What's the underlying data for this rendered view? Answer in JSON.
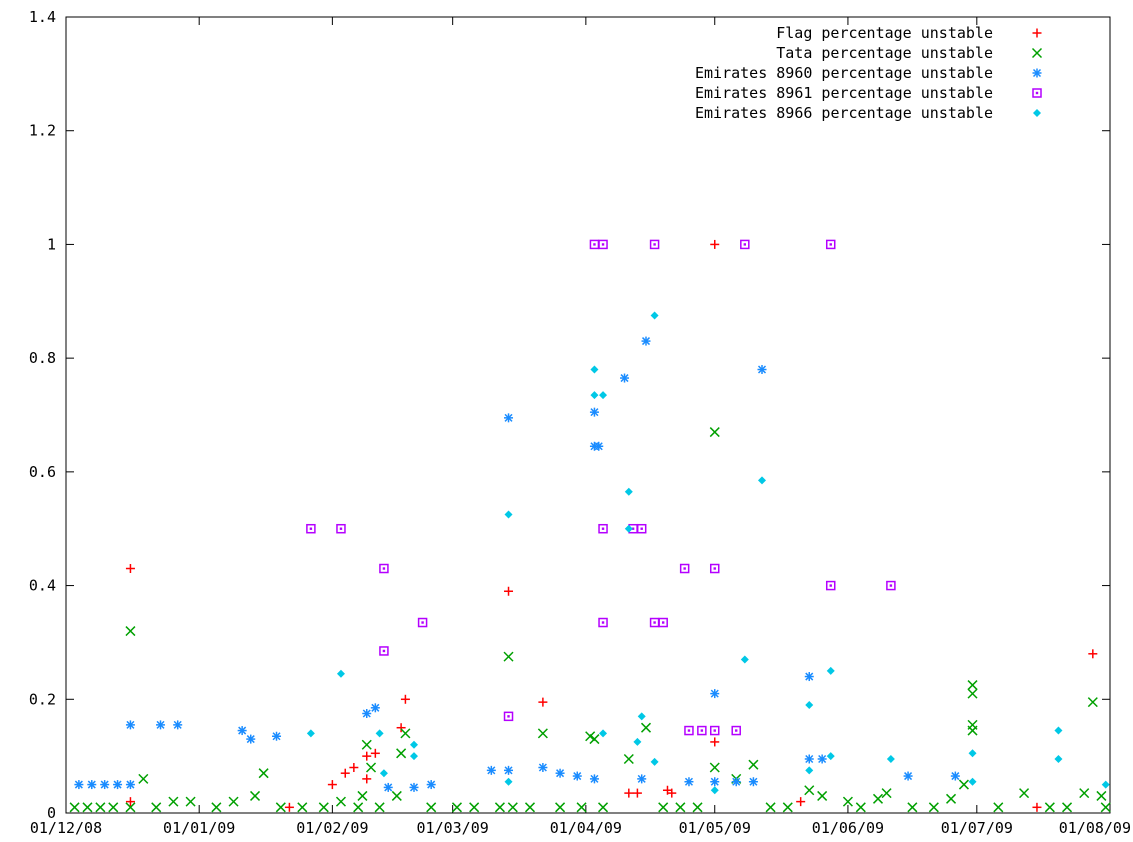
{
  "chart_data": {
    "type": "scatter",
    "title": "",
    "xlabel": "",
    "ylabel": "",
    "xlim": [
      "2008-12-01",
      "2009-08-01"
    ],
    "ylim": [
      0,
      1.4
    ],
    "x_ticks": [
      "01/12/08",
      "01/01/09",
      "01/02/09",
      "01/03/09",
      "01/04/09",
      "01/05/09",
      "01/06/09",
      "01/07/09",
      "01/08/09"
    ],
    "y_ticks": [
      "0",
      "0.2",
      "0.4",
      "0.6",
      "0.8",
      "1",
      "1.2",
      "1.4"
    ],
    "grid": false,
    "legend_position": "top-right",
    "series": [
      {
        "name": "Flag percentage unstable",
        "color": "#ff0000",
        "marker": "plus",
        "points": [
          [
            "2008-12-16",
            0.43
          ],
          [
            "2008-12-16",
            0.02
          ],
          [
            "2009-01-22",
            0.01
          ],
          [
            "2009-02-01",
            0.05
          ],
          [
            "2009-02-04",
            0.07
          ],
          [
            "2009-02-06",
            0.08
          ],
          [
            "2009-02-09",
            0.1
          ],
          [
            "2009-02-11",
            0.105
          ],
          [
            "2009-02-09",
            0.06
          ],
          [
            "2009-02-17",
            0.15
          ],
          [
            "2009-02-18",
            0.2
          ],
          [
            "2009-03-14",
            0.39
          ],
          [
            "2009-03-22",
            0.195
          ],
          [
            "2009-04-11",
            0.035
          ],
          [
            "2009-04-13",
            0.035
          ],
          [
            "2009-04-20",
            0.04
          ],
          [
            "2009-04-21",
            0.035
          ],
          [
            "2009-05-01",
            1.0
          ],
          [
            "2009-05-01",
            0.125
          ],
          [
            "2009-05-21",
            0.02
          ],
          [
            "2009-07-15",
            0.01
          ],
          [
            "2009-07-28",
            0.28
          ]
        ]
      },
      {
        "name": "Tata percentage unstable",
        "color": "#00a000",
        "marker": "cross",
        "points": [
          [
            "2008-12-03",
            0.01
          ],
          [
            "2008-12-06",
            0.01
          ],
          [
            "2008-12-09",
            0.01
          ],
          [
            "2008-12-12",
            0.01
          ],
          [
            "2008-12-16",
            0.32
          ],
          [
            "2008-12-16",
            0.01
          ],
          [
            "2008-12-19",
            0.06
          ],
          [
            "2008-12-22",
            0.01
          ],
          [
            "2008-12-26",
            0.02
          ],
          [
            "2008-12-30",
            0.02
          ],
          [
            "2009-01-05",
            0.01
          ],
          [
            "2009-01-09",
            0.02
          ],
          [
            "2009-01-14",
            0.03
          ],
          [
            "2009-01-16",
            0.07
          ],
          [
            "2009-01-20",
            0.01
          ],
          [
            "2009-01-25",
            0.01
          ],
          [
            "2009-01-30",
            0.01
          ],
          [
            "2009-02-03",
            0.02
          ],
          [
            "2009-02-07",
            0.01
          ],
          [
            "2009-02-08",
            0.03
          ],
          [
            "2009-02-09",
            0.12
          ],
          [
            "2009-02-10",
            0.08
          ],
          [
            "2009-02-12",
            0.01
          ],
          [
            "2009-02-16",
            0.03
          ],
          [
            "2009-02-17",
            0.105
          ],
          [
            "2009-02-18",
            0.14
          ],
          [
            "2009-02-24",
            0.01
          ],
          [
            "2009-03-02",
            0.01
          ],
          [
            "2009-03-06",
            0.01
          ],
          [
            "2009-03-12",
            0.01
          ],
          [
            "2009-03-14",
            0.275
          ],
          [
            "2009-03-15",
            0.01
          ],
          [
            "2009-03-19",
            0.01
          ],
          [
            "2009-03-22",
            0.14
          ],
          [
            "2009-03-26",
            0.01
          ],
          [
            "2009-03-31",
            0.01
          ],
          [
            "2009-04-02",
            0.135
          ],
          [
            "2009-04-03",
            0.13
          ],
          [
            "2009-04-05",
            0.01
          ],
          [
            "2009-04-11",
            0.095
          ],
          [
            "2009-04-15",
            0.15
          ],
          [
            "2009-04-19",
            0.01
          ],
          [
            "2009-04-23",
            0.01
          ],
          [
            "2009-04-27",
            0.01
          ],
          [
            "2009-05-01",
            0.67
          ],
          [
            "2009-05-01",
            0.08
          ],
          [
            "2009-05-06",
            0.06
          ],
          [
            "2009-05-10",
            0.085
          ],
          [
            "2009-05-14",
            0.01
          ],
          [
            "2009-05-18",
            0.01
          ],
          [
            "2009-05-23",
            0.04
          ],
          [
            "2009-05-26",
            0.03
          ],
          [
            "2009-06-01",
            0.02
          ],
          [
            "2009-06-04",
            0.01
          ],
          [
            "2009-06-08",
            0.025
          ],
          [
            "2009-06-10",
            0.035
          ],
          [
            "2009-06-16",
            0.01
          ],
          [
            "2009-06-21",
            0.01
          ],
          [
            "2009-06-25",
            0.025
          ],
          [
            "2009-06-28",
            0.05
          ],
          [
            "2009-06-30",
            0.225
          ],
          [
            "2009-06-30",
            0.21
          ],
          [
            "2009-06-30",
            0.155
          ],
          [
            "2009-06-30",
            0.145
          ],
          [
            "2009-07-06",
            0.01
          ],
          [
            "2009-07-12",
            0.035
          ],
          [
            "2009-07-18",
            0.01
          ],
          [
            "2009-07-22",
            0.01
          ],
          [
            "2009-07-26",
            0.035
          ],
          [
            "2009-07-28",
            0.195
          ],
          [
            "2009-07-30",
            0.03
          ],
          [
            "2009-07-31",
            0.01
          ]
        ]
      },
      {
        "name": "Emirates 8960 percentage unstable",
        "color": "#1a8cff",
        "marker": "star",
        "points": [
          [
            "2008-12-04",
            0.05
          ],
          [
            "2008-12-07",
            0.05
          ],
          [
            "2008-12-10",
            0.05
          ],
          [
            "2008-12-13",
            0.05
          ],
          [
            "2008-12-16",
            0.155
          ],
          [
            "2008-12-16",
            0.05
          ],
          [
            "2008-12-23",
            0.155
          ],
          [
            "2008-12-27",
            0.155
          ],
          [
            "2009-01-11",
            0.145
          ],
          [
            "2009-01-13",
            0.13
          ],
          [
            "2009-01-19",
            0.135
          ],
          [
            "2009-02-09",
            0.175
          ],
          [
            "2009-02-11",
            0.185
          ],
          [
            "2009-02-14",
            0.045
          ],
          [
            "2009-02-20",
            0.045
          ],
          [
            "2009-02-24",
            0.05
          ],
          [
            "2009-03-14",
            0.695
          ],
          [
            "2009-03-10",
            0.075
          ],
          [
            "2009-03-14",
            0.075
          ],
          [
            "2009-03-22",
            0.08
          ],
          [
            "2009-03-26",
            0.07
          ],
          [
            "2009-03-30",
            0.065
          ],
          [
            "2009-04-03",
            0.705
          ],
          [
            "2009-04-03",
            0.645
          ],
          [
            "2009-04-04",
            0.645
          ],
          [
            "2009-04-03",
            0.06
          ],
          [
            "2009-04-10",
            0.765
          ],
          [
            "2009-04-14",
            0.06
          ],
          [
            "2009-04-15",
            0.83
          ],
          [
            "2009-04-25",
            0.055
          ],
          [
            "2009-05-01",
            0.21
          ],
          [
            "2009-05-01",
            0.055
          ],
          [
            "2009-05-06",
            0.055
          ],
          [
            "2009-05-12",
            0.78
          ],
          [
            "2009-05-10",
            0.055
          ],
          [
            "2009-05-23",
            0.24
          ],
          [
            "2009-05-23",
            0.095
          ],
          [
            "2009-05-26",
            0.095
          ],
          [
            "2009-06-15",
            0.065
          ],
          [
            "2009-06-26",
            0.065
          ]
        ]
      },
      {
        "name": "Emirates 8961 percentage unstable",
        "color": "#b400ff",
        "marker": "square",
        "points": [
          [
            "2009-01-27",
            0.5
          ],
          [
            "2009-02-03",
            0.5
          ],
          [
            "2009-02-13",
            0.43
          ],
          [
            "2009-02-13",
            0.285
          ],
          [
            "2009-02-22",
            0.335
          ],
          [
            "2009-03-14",
            0.17
          ],
          [
            "2009-04-03",
            1.0
          ],
          [
            "2009-04-05",
            1.0
          ],
          [
            "2009-04-17",
            1.0
          ],
          [
            "2009-04-05",
            0.5
          ],
          [
            "2009-04-05",
            0.335
          ],
          [
            "2009-04-12",
            0.5
          ],
          [
            "2009-04-14",
            0.5
          ],
          [
            "2009-04-17",
            0.335
          ],
          [
            "2009-04-19",
            0.335
          ],
          [
            "2009-04-24",
            0.43
          ],
          [
            "2009-04-25",
            0.145
          ],
          [
            "2009-04-28",
            0.145
          ],
          [
            "2009-05-01",
            0.43
          ],
          [
            "2009-05-01",
            0.145
          ],
          [
            "2009-05-08",
            1.0
          ],
          [
            "2009-05-06",
            0.145
          ],
          [
            "2009-05-28",
            1.0
          ],
          [
            "2009-05-28",
            0.4
          ],
          [
            "2009-06-11",
            0.4
          ]
        ]
      },
      {
        "name": "Emirates 8966 percentage unstable",
        "color": "#00c8e6",
        "marker": "diamond",
        "points": [
          [
            "2009-01-27",
            0.14
          ],
          [
            "2009-02-03",
            0.245
          ],
          [
            "2009-02-12",
            0.14
          ],
          [
            "2009-02-13",
            0.07
          ],
          [
            "2009-02-20",
            0.12
          ],
          [
            "2009-02-20",
            0.1
          ],
          [
            "2009-03-14",
            0.525
          ],
          [
            "2009-03-14",
            0.055
          ],
          [
            "2009-04-03",
            0.78
          ],
          [
            "2009-04-03",
            0.735
          ],
          [
            "2009-04-05",
            0.735
          ],
          [
            "2009-04-05",
            0.14
          ],
          [
            "2009-04-11",
            0.565
          ],
          [
            "2009-04-11",
            0.5
          ],
          [
            "2009-04-13",
            0.125
          ],
          [
            "2009-04-14",
            0.17
          ],
          [
            "2009-04-17",
            0.875
          ],
          [
            "2009-04-17",
            0.09
          ],
          [
            "2009-05-01",
            0.04
          ],
          [
            "2009-05-08",
            0.27
          ],
          [
            "2009-05-12",
            0.585
          ],
          [
            "2009-05-23",
            0.19
          ],
          [
            "2009-05-23",
            0.075
          ],
          [
            "2009-05-28",
            0.25
          ],
          [
            "2009-05-28",
            0.1
          ],
          [
            "2009-06-11",
            0.095
          ],
          [
            "2009-06-30",
            0.105
          ],
          [
            "2009-06-30",
            0.055
          ],
          [
            "2009-07-20",
            0.145
          ],
          [
            "2009-07-20",
            0.095
          ],
          [
            "2009-07-31",
            0.05
          ]
        ]
      }
    ]
  }
}
